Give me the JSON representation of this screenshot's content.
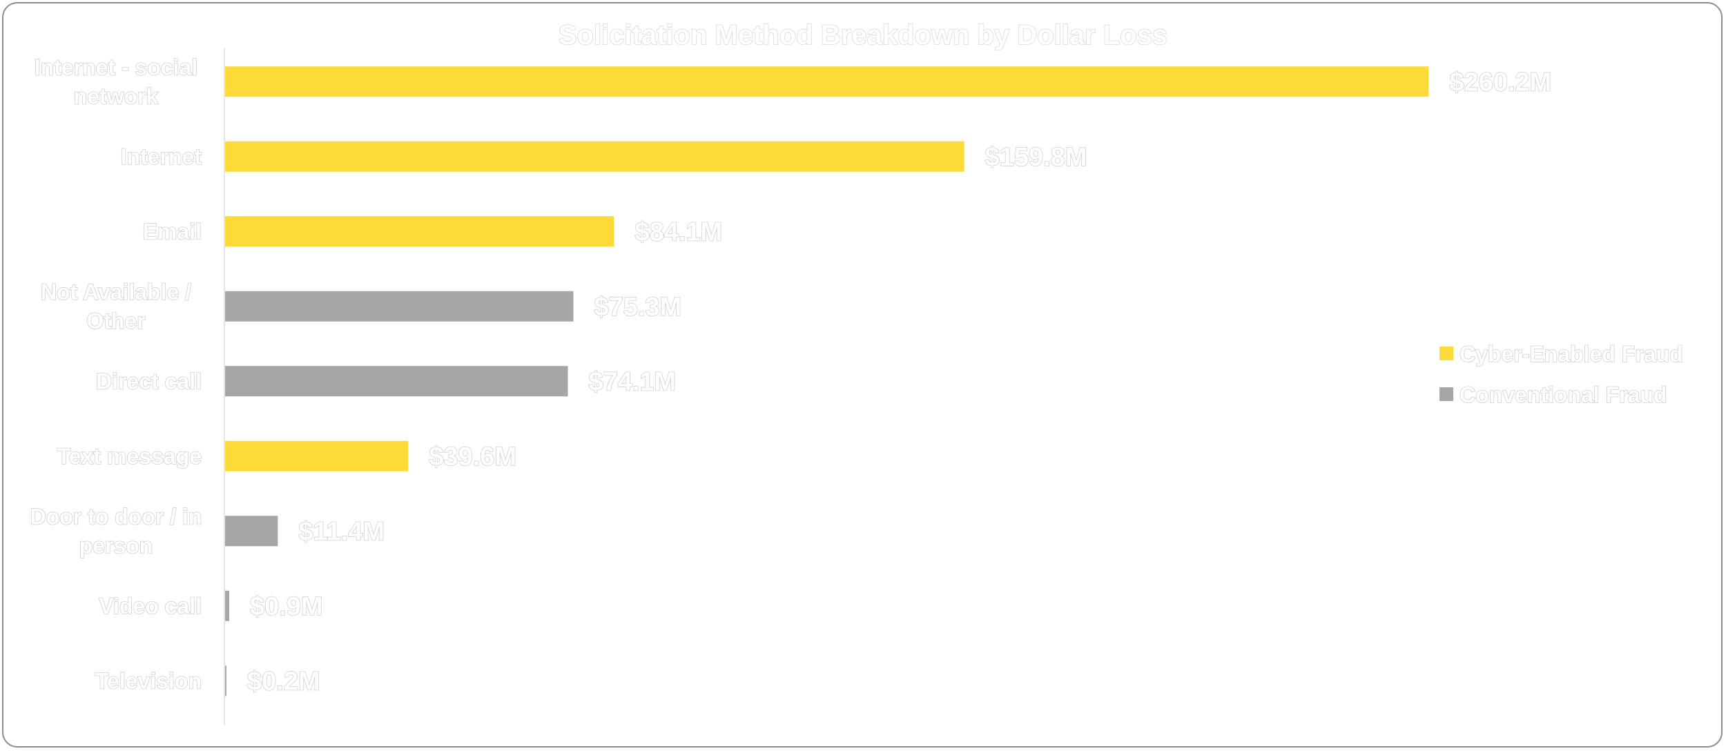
{
  "chart_data": {
    "type": "bar",
    "orientation": "horizontal",
    "title": "Solicitation Method Breakdown by Dollar Loss",
    "xlabel": "",
    "ylabel": "",
    "grid": false,
    "legend_position": "right",
    "xlim": [
      0,
      260
    ],
    "categories": [
      "Internet - social network",
      "Internet",
      "Email",
      "Not Available / Other",
      "Direct call",
      "Text message",
      "Door to door / in person",
      "Video call",
      "Television"
    ],
    "values": [
      260.2,
      159.8,
      84.1,
      75.3,
      74.1,
      39.6,
      11.4,
      0.9,
      0.2
    ],
    "value_labels": [
      "$260.2M",
      "$159.8M",
      "$84.1M",
      "$75.3M",
      "$74.1M",
      "$39.6M",
      "$11.4M",
      "$0.9M",
      "$0.2M"
    ],
    "series_of": [
      "cyber",
      "cyber",
      "cyber",
      "conventional",
      "conventional",
      "cyber",
      "conventional",
      "conventional",
      "conventional"
    ],
    "series": [
      {
        "key": "cyber",
        "name": "Cyber-Enabled Fraud",
        "color": "#fcdb38"
      },
      {
        "key": "conventional",
        "name": "Conventional Fraud",
        "color": "#a6a6a6"
      }
    ]
  }
}
